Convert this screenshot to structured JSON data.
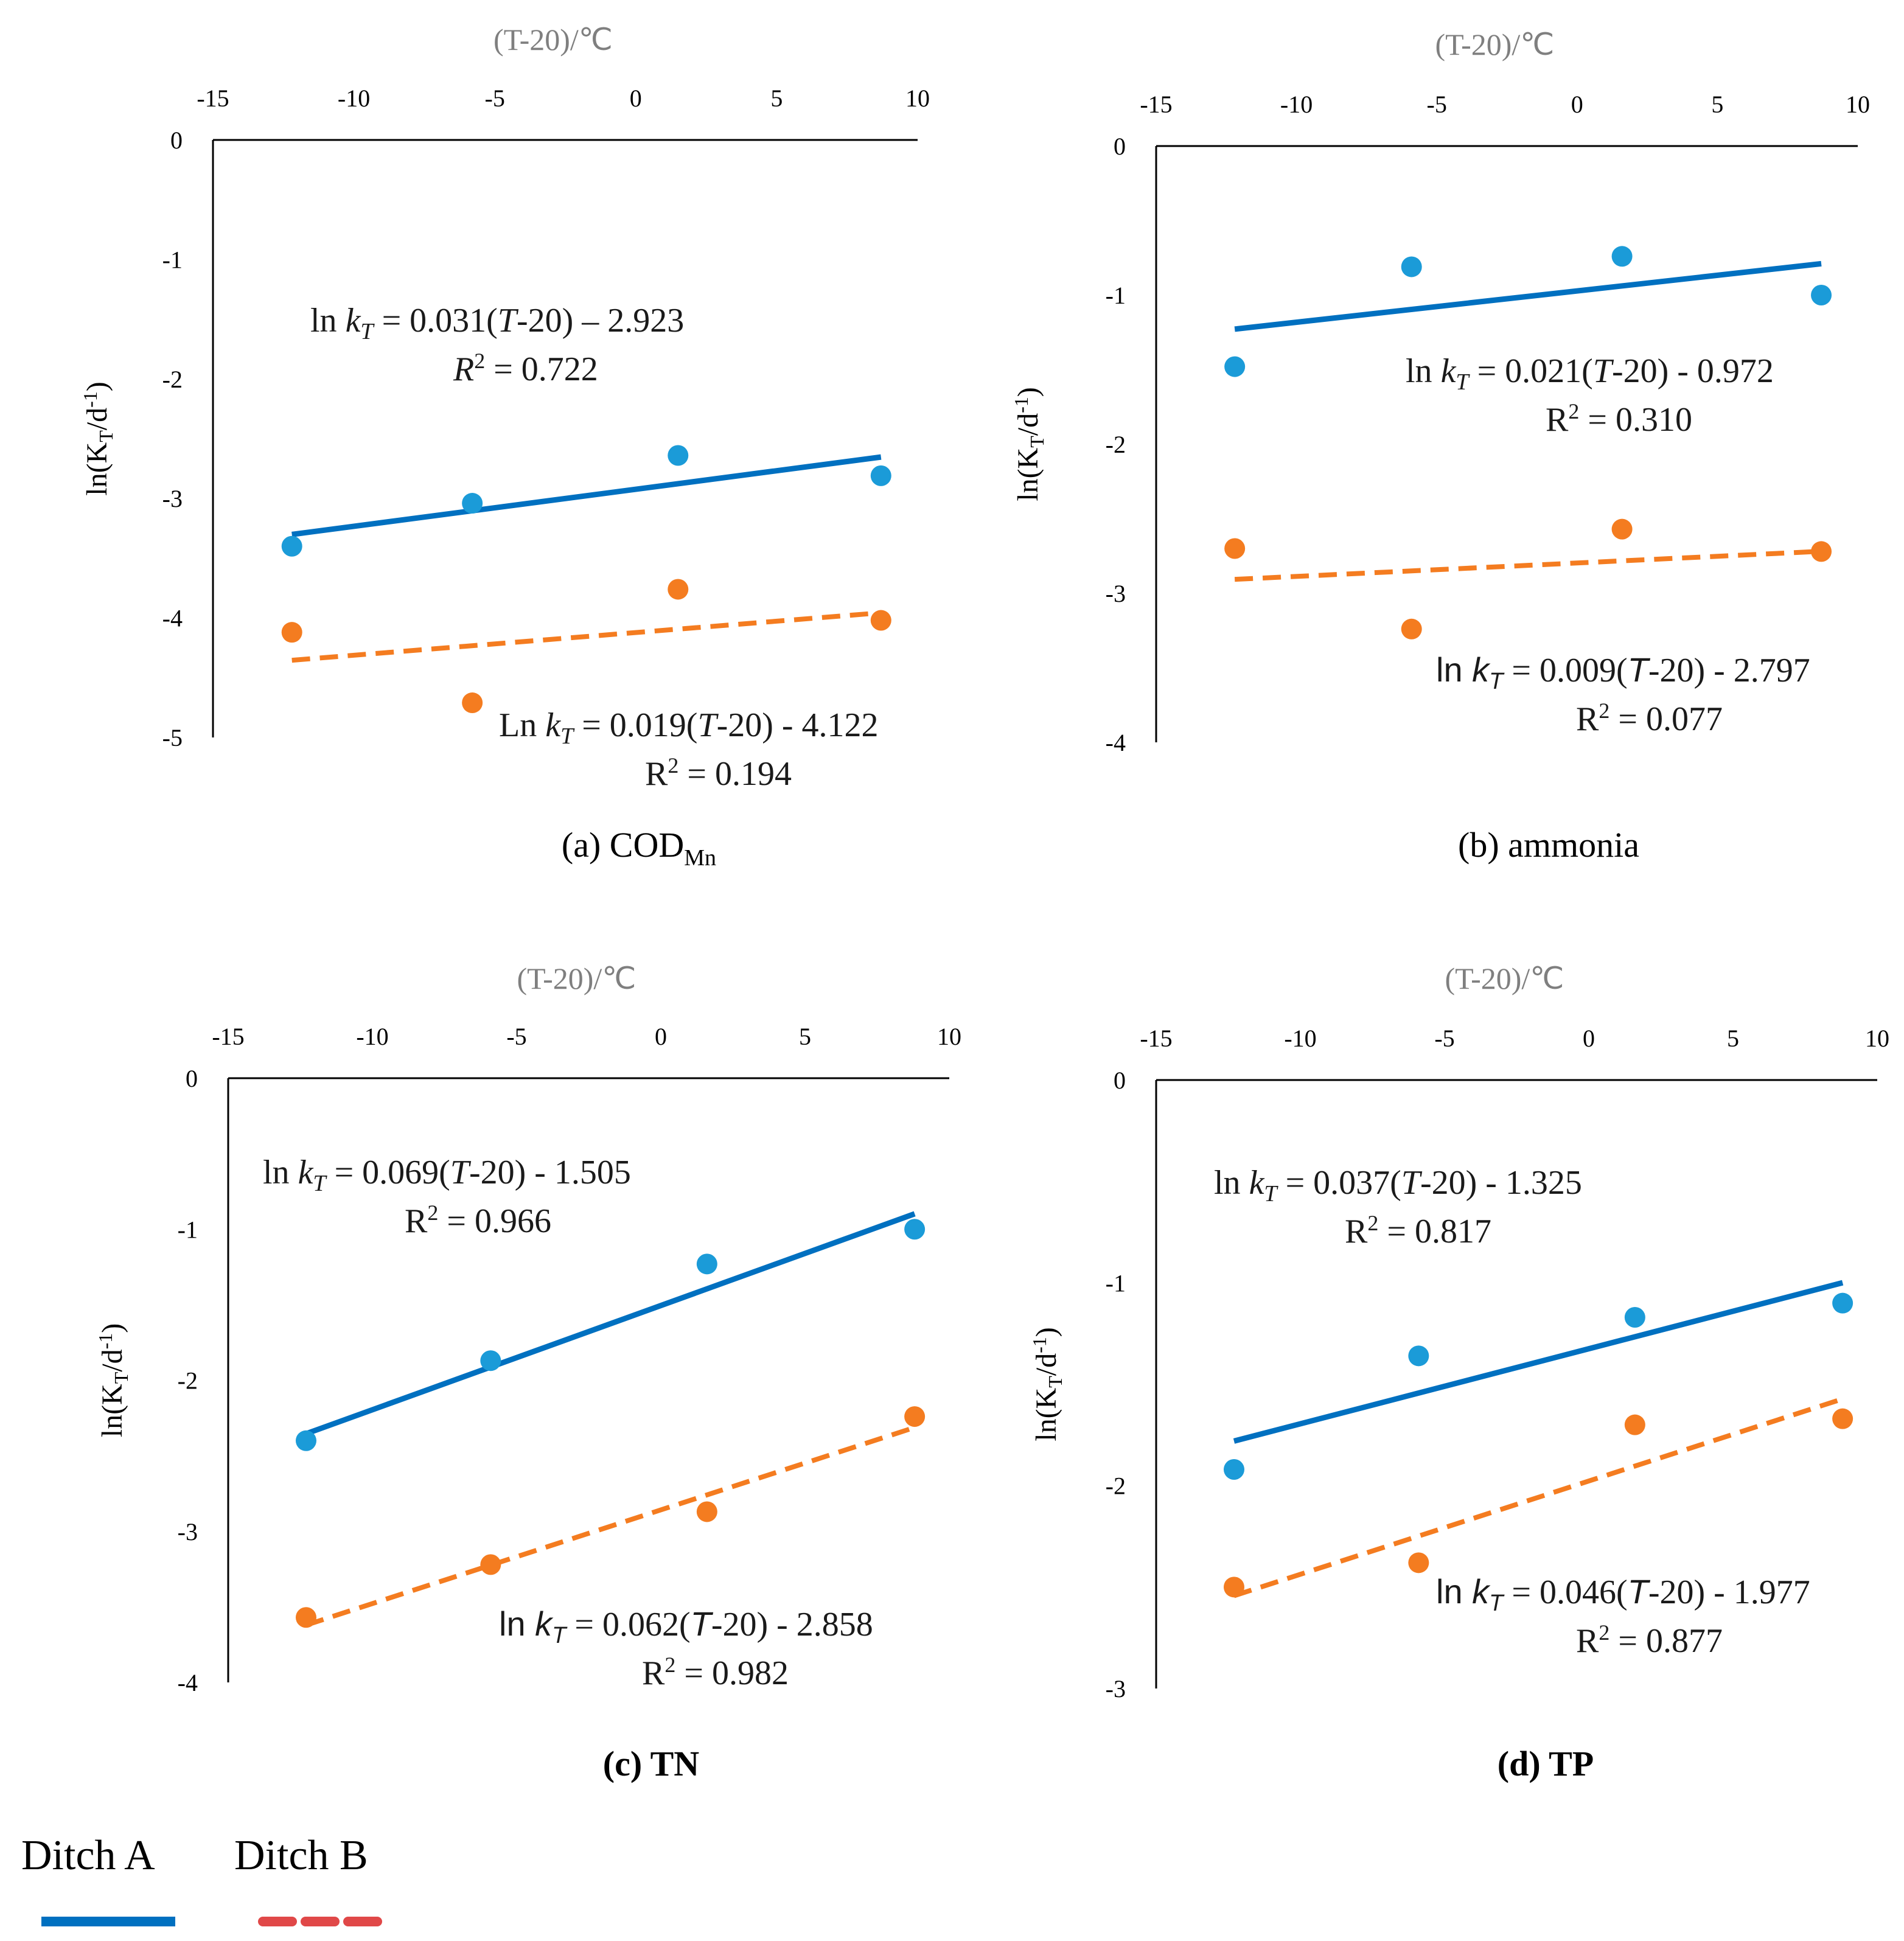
{
  "legend": {
    "a": {
      "label": "Ditch A",
      "color": "#0070C0"
    },
    "b": {
      "label": "Ditch B",
      "color": "#E04848"
    }
  },
  "colors": {
    "ditch_a": "#0070C0",
    "ditch_a_marker": "#1B9BD8",
    "ditch_b": "#F47C20",
    "axis_title": "#7f7f7f"
  },
  "chart_data": [
    {
      "id": "a",
      "type": "scatter",
      "caption": {
        "main": "(a) COD",
        "sub": "Mn"
      },
      "caption_bold": false,
      "xlabel": "(T-20)/℃",
      "ylabel": "ln(K_T/d^-1)",
      "xlim": [
        -15,
        10
      ],
      "ylim": [
        -5,
        0
      ],
      "xticks": [
        "-15",
        "-10",
        "-5",
        "0",
        "5",
        "10"
      ],
      "yticks": [
        "0",
        "-1",
        "-2",
        "-3",
        "-4",
        "-5"
      ],
      "series": [
        {
          "name": "Ditch A",
          "x": [
            -12.2,
            -5.8,
            1.5,
            8.7
          ],
          "y": [
            -3.4,
            -3.04,
            -2.64,
            -2.81
          ],
          "fit": {
            "slope": 0.031,
            "intercept": -2.923
          },
          "fit_x": [
            -12.2,
            8.7
          ]
        },
        {
          "name": "Ditch B",
          "x": [
            -12.2,
            -5.8,
            1.5,
            8.7
          ],
          "y": [
            -4.12,
            -4.71,
            -3.76,
            -4.02
          ],
          "fit": {
            "slope": 0.019,
            "intercept": -4.122
          },
          "fit_x": [
            -12.2,
            8.7
          ]
        }
      ],
      "equations": [
        {
          "series": "Ditch A",
          "lead": "ln ",
          "k": "k",
          "kt": "T",
          "mid": " = 0.031(",
          "tv": "T",
          "tail": "-20) – 2.923",
          "r2_label": "R",
          "r2_value": " = 0.722"
        },
        {
          "series": "Ditch B",
          "lead": "Ln ",
          "k": "k",
          "kt": "T",
          "mid": " = 0.019(",
          "tv": "T",
          "tail": "-20) - 4.122",
          "r2_label": "R",
          "r2_value": " = 0.194"
        }
      ]
    },
    {
      "id": "b",
      "type": "scatter",
      "caption": {
        "main": "(b) ammonia",
        "sub": ""
      },
      "caption_bold": false,
      "xlabel": "(T-20)/℃",
      "ylabel": "ln(K_T/d^-1)",
      "xlim": [
        -15,
        10
      ],
      "ylim": [
        -4,
        0
      ],
      "xticks": [
        "-15",
        "-10",
        "-5",
        "0",
        "5",
        "10"
      ],
      "yticks": [
        "0",
        "-1",
        "-2",
        "-3",
        "-4"
      ],
      "series": [
        {
          "name": "Ditch A",
          "x": [
            -12.2,
            -5.9,
            1.6,
            8.7
          ],
          "y": [
            -1.48,
            -0.81,
            -0.74,
            -1.0
          ],
          "fit": {
            "slope": 0.021,
            "intercept": -0.972
          },
          "fit_x": [
            -12.2,
            8.7
          ]
        },
        {
          "name": "Ditch B",
          "x": [
            -12.2,
            -5.9,
            1.6,
            8.7
          ],
          "y": [
            -2.7,
            -3.24,
            -2.57,
            -2.72
          ],
          "fit": {
            "slope": 0.009,
            "intercept": -2.797
          },
          "fit_x": [
            -12.2,
            8.7
          ]
        }
      ],
      "equations": [
        {
          "series": "Ditch A",
          "lead": "ln ",
          "k": "k",
          "kt": "T",
          "mid": " = 0.021(",
          "tv": "T",
          "tail": "-20) - 0.972",
          "r2_label": "R",
          "r2_value": " = 0.310"
        },
        {
          "series": "Ditch B",
          "lead": "ln ",
          "k": "k",
          "kt": "T",
          "mid": "  = 0.009(",
          "tv": "T",
          "tail": "-20) - 2.797",
          "r2_label": "R",
          "r2_value": " = 0.077"
        }
      ]
    },
    {
      "id": "c",
      "type": "scatter",
      "caption": {
        "main": "(c) TN",
        "sub": ""
      },
      "caption_bold": true,
      "xlabel": "(T-20)/℃",
      "ylabel": "ln(K_T/d^-1)",
      "xlim": [
        -15,
        10
      ],
      "ylim": [
        -4,
        0
      ],
      "xticks": [
        "-15",
        "-10",
        "-5",
        "0",
        "5",
        "10"
      ],
      "yticks": [
        "0",
        "-1",
        "-2",
        "-3",
        "-4"
      ],
      "series": [
        {
          "name": "Ditch A",
          "x": [
            -12.3,
            -5.9,
            1.6,
            8.8
          ],
          "y": [
            -2.4,
            -1.87,
            -1.23,
            -1.0
          ],
          "fit": {
            "slope": 0.069,
            "intercept": -1.505
          },
          "fit_x": [
            -12.3,
            8.8
          ]
        },
        {
          "name": "Ditch B",
          "x": [
            -12.3,
            -5.9,
            1.6,
            8.8
          ],
          "y": [
            -3.57,
            -3.22,
            -2.87,
            -2.24
          ],
          "fit": {
            "slope": 0.062,
            "intercept": -2.858
          },
          "fit_x": [
            -12.3,
            8.8
          ]
        }
      ],
      "equations": [
        {
          "series": "Ditch A",
          "lead": "ln ",
          "k": "k",
          "kt": "T",
          "mid": " = 0.069(",
          "tv": "T",
          "tail": "-20) - 1.505",
          "r2_label": "R",
          "r2_value": " = 0.966"
        },
        {
          "series": "Ditch B",
          "lead": "ln ",
          "k": "k",
          "kt": "T",
          "mid": "  = 0.062(",
          "tv": "T",
          "tail": "-20) - 2.858",
          "r2_label": "R",
          "r2_value": " = 0.982"
        }
      ]
    },
    {
      "id": "d",
      "type": "scatter",
      "caption": {
        "main": "(d) TP",
        "sub": ""
      },
      "caption_bold": true,
      "xlabel": "(T-20)/℃",
      "ylabel": "ln(K_T/d^-1)",
      "xlim": [
        -15,
        10
      ],
      "ylim": [
        -3,
        0
      ],
      "xticks": [
        "-15",
        "-10",
        "-5",
        "0",
        "5",
        "10"
      ],
      "yticks": [
        "0",
        "-1",
        "-2",
        "-3"
      ],
      "series": [
        {
          "name": "Ditch A",
          "x": [
            -12.3,
            -5.9,
            1.6,
            8.8
          ],
          "y": [
            -1.92,
            -1.36,
            -1.17,
            -1.1
          ],
          "fit": {
            "slope": 0.037,
            "intercept": -1.325
          },
          "fit_x": [
            -12.3,
            8.8
          ]
        },
        {
          "name": "Ditch B",
          "x": [
            -12.3,
            -5.9,
            1.6,
            8.8
          ],
          "y": [
            -2.5,
            -2.38,
            -1.7,
            -1.67
          ],
          "fit": {
            "slope": 0.046,
            "intercept": -1.977
          },
          "fit_x": [
            -12.3,
            8.8
          ]
        }
      ],
      "equations": [
        {
          "series": "Ditch A",
          "lead": "ln ",
          "k": "k",
          "kt": "T",
          "mid": " = 0.037(",
          "tv": "T",
          "tail": "-20) - 1.325",
          "r2_label": "R",
          "r2_value": " = 0.817"
        },
        {
          "series": "Ditch B",
          "lead": "ln ",
          "k": "k",
          "kt": "T",
          "mid": " = 0.046(",
          "tv": "T",
          "tail": "-20) - 1.977",
          "r2_label": "R",
          "r2_value": " = 0.877"
        }
      ]
    }
  ]
}
